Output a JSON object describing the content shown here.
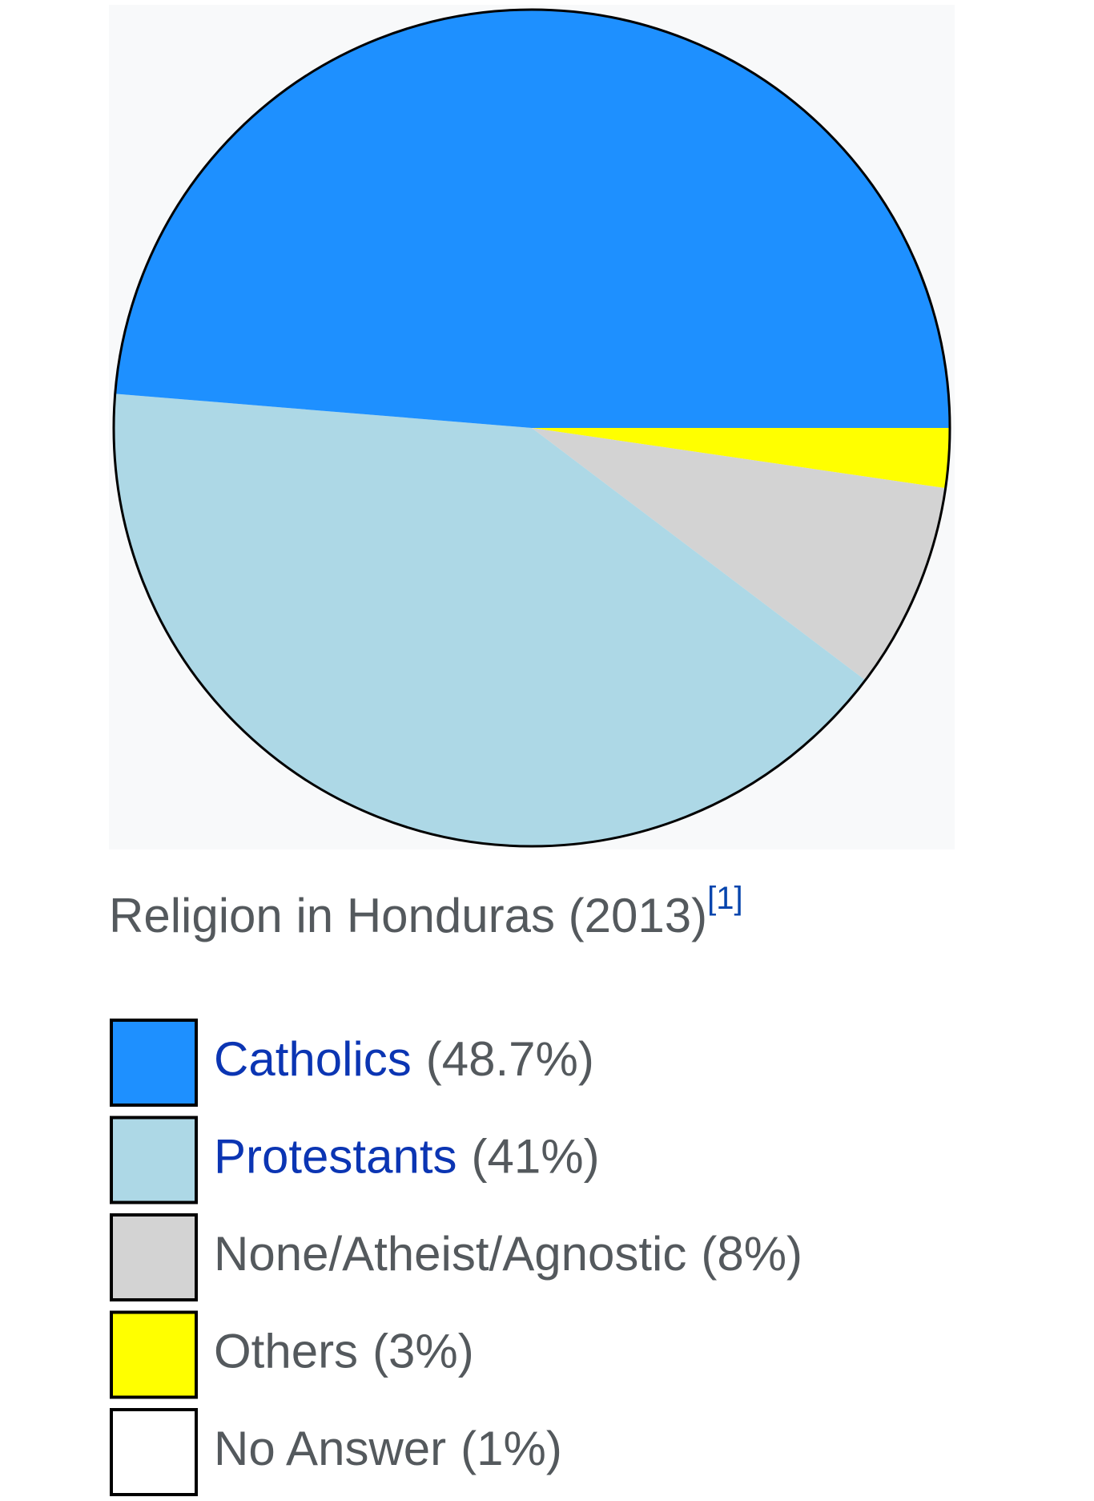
{
  "chart_data": {
    "type": "pie",
    "title": "Religion in Honduras (2013)",
    "title_reference": "[1]",
    "categories": [
      "Catholics",
      "Protestants",
      "None/Atheist/Agnostic",
      "Others",
      "No Answer"
    ],
    "values": [
      48.7,
      41,
      8,
      3,
      1
    ],
    "value_labels": [
      "(48.7%)",
      "(41%)",
      "(8%)",
      "(3%)",
      "(1%)"
    ],
    "colors": [
      "#1e90ff",
      "#add8e6",
      "#d3d3d3",
      "#ffff00",
      "#ffffff"
    ],
    "linked": [
      true,
      true,
      false,
      false,
      false
    ]
  }
}
